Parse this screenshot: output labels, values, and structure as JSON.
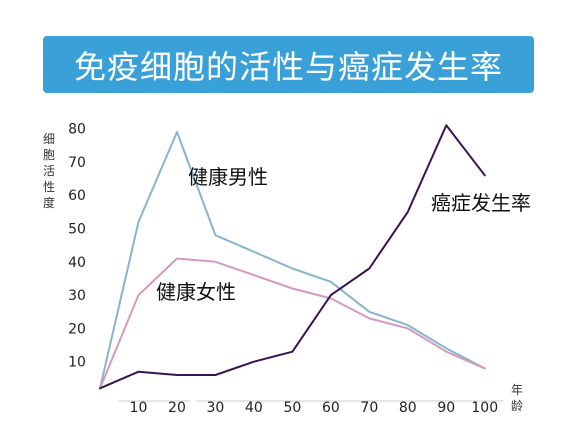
{
  "title": "免疫细胞的活性与癌症发生率",
  "chart_data": {
    "type": "line",
    "ylabel": "细胞活性度",
    "xlabel": "年龄",
    "xticks": [
      10,
      20,
      30,
      40,
      50,
      60,
      70,
      80,
      90,
      100
    ],
    "yticks": [
      10,
      20,
      30,
      40,
      50,
      60,
      70,
      80
    ],
    "xlim": [
      0,
      105
    ],
    "ylim": [
      0,
      85
    ],
    "grid": false,
    "series": [
      {
        "name": "健康男性",
        "color": "#88b4cc",
        "points": [
          [
            0,
            2
          ],
          [
            10,
            52
          ],
          [
            20,
            79
          ],
          [
            30,
            48
          ],
          [
            40,
            43
          ],
          [
            50,
            38
          ],
          [
            60,
            34
          ],
          [
            70,
            25
          ],
          [
            80,
            21
          ],
          [
            90,
            14
          ],
          [
            100,
            8
          ]
        ]
      },
      {
        "name": "健康女性",
        "color": "#d49bbd",
        "points": [
          [
            0,
            2
          ],
          [
            10,
            30
          ],
          [
            20,
            41
          ],
          [
            30,
            40
          ],
          [
            40,
            36
          ],
          [
            50,
            32
          ],
          [
            60,
            29
          ],
          [
            70,
            23
          ],
          [
            80,
            20
          ],
          [
            90,
            13
          ],
          [
            100,
            8
          ]
        ]
      },
      {
        "name": "癌症发生率",
        "color": "#3a1450",
        "points": [
          [
            0,
            2
          ],
          [
            10,
            7
          ],
          [
            20,
            6
          ],
          [
            30,
            6
          ],
          [
            40,
            10
          ],
          [
            50,
            13
          ],
          [
            60,
            30
          ],
          [
            70,
            38
          ],
          [
            80,
            55
          ],
          [
            90,
            81
          ],
          [
            100,
            66
          ]
        ]
      }
    ]
  }
}
